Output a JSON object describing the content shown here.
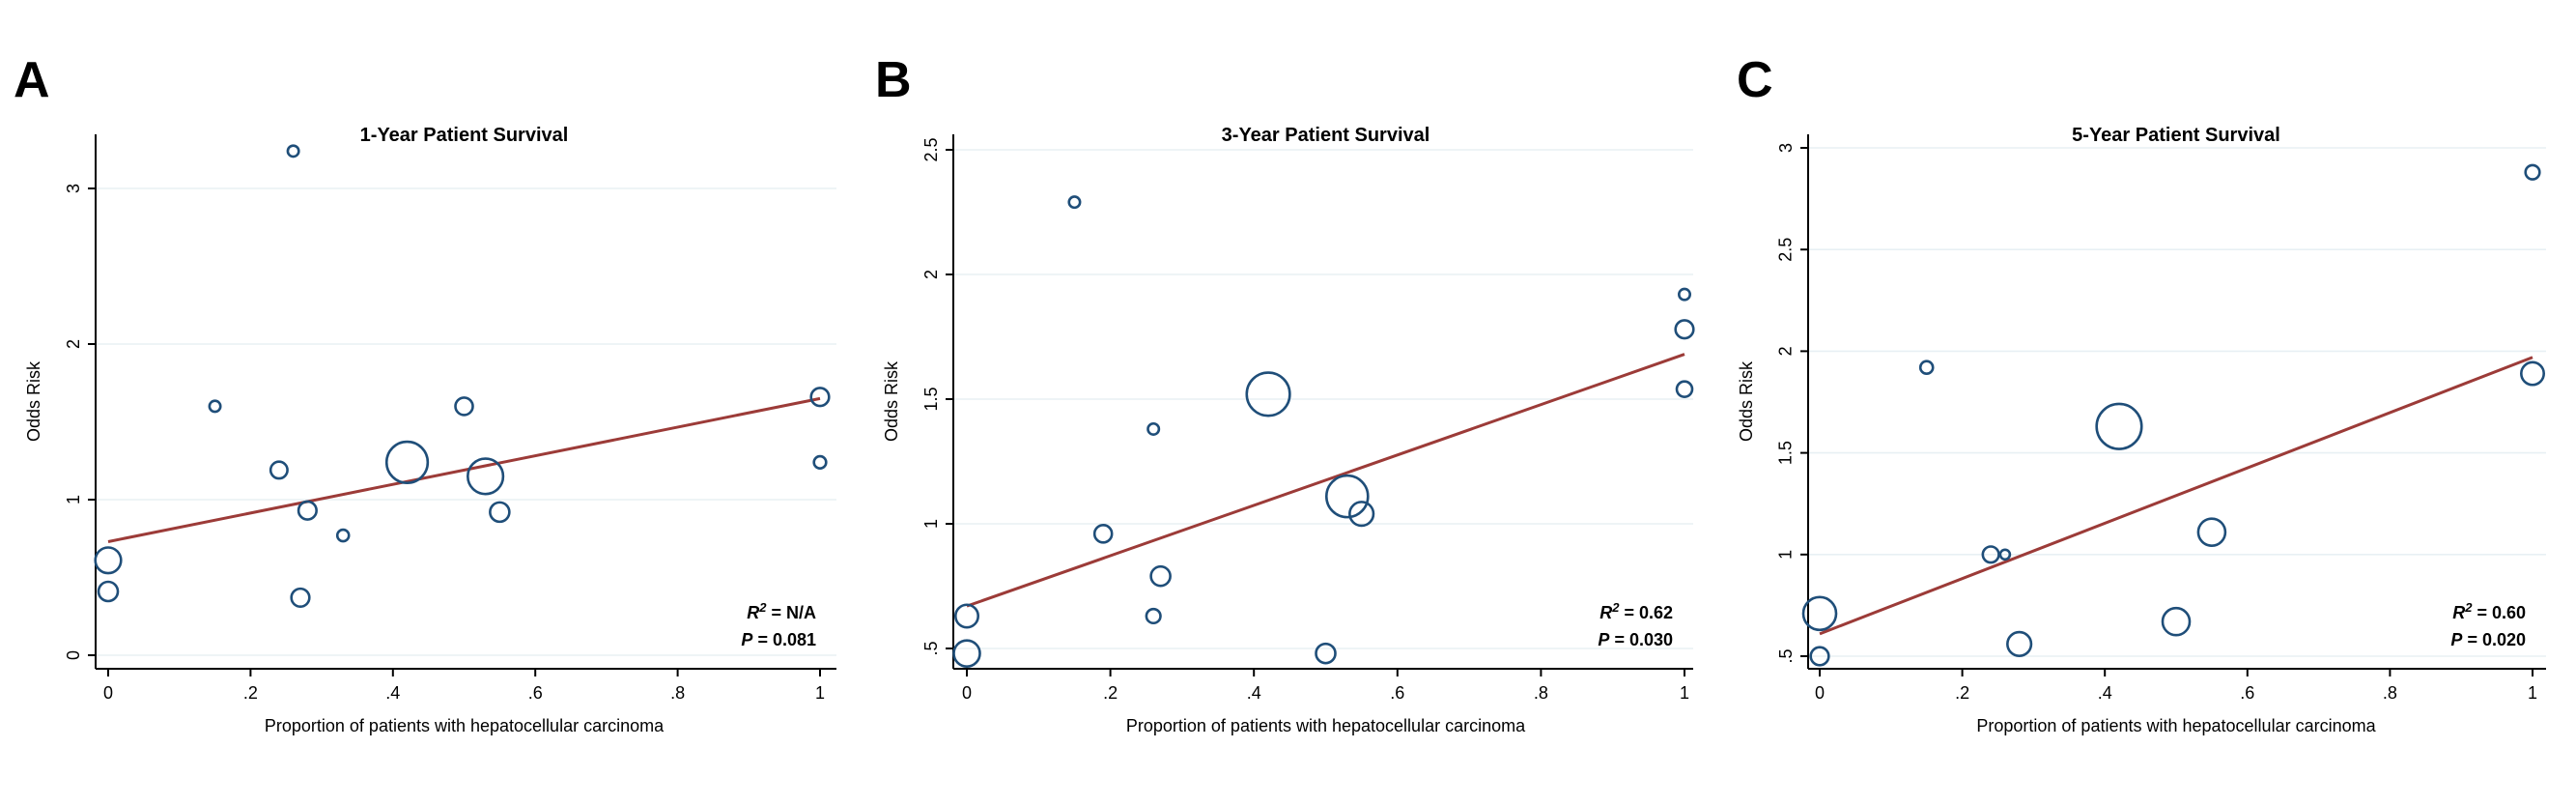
{
  "figure": {
    "xlabel": "Proportion of patients with hepatocellular carcinoma",
    "ylabel": "Odds Risk",
    "x_ticks": [
      {
        "label": "0",
        "value": 0
      },
      {
        "label": ".2",
        "value": 0.2
      },
      {
        "label": ".4",
        "value": 0.4
      },
      {
        "label": ".6",
        "value": 0.6
      },
      {
        "label": ".8",
        "value": 0.8
      },
      {
        "label": "1",
        "value": 1
      }
    ]
  },
  "colors": {
    "bubble_stroke": "#1F4E79",
    "trend_line": "#9C3B38",
    "gridline": "#E8F0F4",
    "axis": "#000000",
    "text": "#000000"
  },
  "chart_data": [
    {
      "type": "scatter",
      "panel": "A",
      "title": "1-Year Patient Survival",
      "xlabel": "Proportion of patients with hepatocellular carcinoma",
      "ylabel": "Odds Risk",
      "xlim": [
        0,
        1
      ],
      "ylim": [
        -0.05,
        3.35
      ],
      "grid": true,
      "y_ticks": [
        {
          "label": "0",
          "value": 0
        },
        {
          "label": "1",
          "value": 1
        },
        {
          "label": "2",
          "value": 2
        },
        {
          "label": "3",
          "value": 3
        }
      ],
      "annotation": {
        "r2_label": "R",
        "r2_sup": "2",
        "r2_value": "N/A",
        "p_label": "P",
        "p_value": "0.081"
      },
      "trend": {
        "x_start": 0,
        "y_start": 0.73,
        "x_end": 1,
        "y_end": 1.65
      },
      "points": [
        {
          "x": 0.26,
          "y": 3.24,
          "r": 5.7
        },
        {
          "x": 0.15,
          "y": 1.6,
          "r": 5.7
        },
        {
          "x": 0.24,
          "y": 1.19,
          "r": 8.7
        },
        {
          "x": 0.28,
          "y": 0.93,
          "r": 9.3
        },
        {
          "x": 0.33,
          "y": 0.77,
          "r": 6.0
        },
        {
          "x": 0.42,
          "y": 1.24,
          "r": 21.3
        },
        {
          "x": 0.5,
          "y": 1.6,
          "r": 9.0
        },
        {
          "x": 0.53,
          "y": 1.15,
          "r": 18.3
        },
        {
          "x": 0.55,
          "y": 0.92,
          "r": 10.0
        },
        {
          "x": 0.0,
          "y": 0.61,
          "r": 13.3
        },
        {
          "x": 0.0,
          "y": 0.41,
          "r": 10.0
        },
        {
          "x": 0.27,
          "y": 0.37,
          "r": 9.3
        },
        {
          "x": 1.0,
          "y": 1.66,
          "r": 9.3
        },
        {
          "x": 1.0,
          "y": 1.24,
          "r": 6.3
        }
      ]
    },
    {
      "type": "scatter",
      "panel": "B",
      "title": "3-Year Patient Survival",
      "xlabel": "Proportion of patients with hepatocellular carcinoma",
      "ylabel": "Odds Risk",
      "xlim": [
        0,
        1
      ],
      "ylim": [
        0.42,
        2.58
      ],
      "grid": true,
      "y_ticks": [
        {
          "label": ".5",
          "value": 0.5
        },
        {
          "label": "1",
          "value": 1
        },
        {
          "label": "1.5",
          "value": 1.5
        },
        {
          "label": "2",
          "value": 2
        },
        {
          "label": "2.5",
          "value": 2.5
        }
      ],
      "annotation": {
        "r2_label": "R",
        "r2_sup": "2",
        "r2_value": "0.62",
        "p_label": "P",
        "p_value": "0.030"
      },
      "trend": {
        "x_start": 0,
        "y_start": 0.67,
        "x_end": 1,
        "y_end": 1.68
      },
      "points": [
        {
          "x": 0.15,
          "y": 2.29,
          "r": 5.7
        },
        {
          "x": 0.42,
          "y": 1.52,
          "r": 22.3
        },
        {
          "x": 0.26,
          "y": 1.38,
          "r": 5.7
        },
        {
          "x": 0.53,
          "y": 1.11,
          "r": 21.5
        },
        {
          "x": 0.55,
          "y": 1.04,
          "r": 12.3
        },
        {
          "x": 0.19,
          "y": 0.96,
          "r": 9.0
        },
        {
          "x": 0.27,
          "y": 0.79,
          "r": 10.0
        },
        {
          "x": 0.26,
          "y": 0.63,
          "r": 7.3
        },
        {
          "x": 0.0,
          "y": 0.63,
          "r": 11.7
        },
        {
          "x": 0.0,
          "y": 0.48,
          "r": 13.5
        },
        {
          "x": 0.5,
          "y": 0.48,
          "r": 10.0
        },
        {
          "x": 1.0,
          "y": 1.92,
          "r": 5.7
        },
        {
          "x": 1.0,
          "y": 1.78,
          "r": 9.3
        },
        {
          "x": 1.0,
          "y": 1.54,
          "r": 8.0
        }
      ]
    },
    {
      "type": "scatter",
      "panel": "C",
      "title": "5-Year Patient Survival",
      "xlabel": "Proportion of patients with hepatocellular carcinoma",
      "ylabel": "Odds Risk",
      "xlim": [
        0,
        1
      ],
      "ylim": [
        0.42,
        3.08
      ],
      "grid": true,
      "y_ticks": [
        {
          "label": ".5",
          "value": 0.5
        },
        {
          "label": "1",
          "value": 1
        },
        {
          "label": "1.5",
          "value": 1.5
        },
        {
          "label": "2",
          "value": 2
        },
        {
          "label": "2.5",
          "value": 2.5
        },
        {
          "label": "3",
          "value": 3
        }
      ],
      "annotation": {
        "r2_label": "R",
        "r2_sup": "2",
        "r2_value": "0.60",
        "p_label": "P",
        "p_value": "0.020"
      },
      "trend": {
        "x_start": 0,
        "y_start": 0.61,
        "x_end": 1,
        "y_end": 1.97
      },
      "points": [
        {
          "x": 0.15,
          "y": 1.92,
          "r": 6.5
        },
        {
          "x": 0.42,
          "y": 1.63,
          "r": 23.3
        },
        {
          "x": 0.24,
          "y": 1.0,
          "r": 8.3
        },
        {
          "x": 0.26,
          "y": 1.0,
          "r": 5.0
        },
        {
          "x": 0.55,
          "y": 1.11,
          "r": 14.0
        },
        {
          "x": 0.5,
          "y": 0.67,
          "r": 14.0
        },
        {
          "x": 0.28,
          "y": 0.56,
          "r": 12.3
        },
        {
          "x": 0.0,
          "y": 0.71,
          "r": 17.0
        },
        {
          "x": 0.0,
          "y": 0.5,
          "r": 9.3
        },
        {
          "x": 1.0,
          "y": 2.88,
          "r": 7.3
        },
        {
          "x": 1.0,
          "y": 1.89,
          "r": 11.7
        }
      ]
    }
  ]
}
